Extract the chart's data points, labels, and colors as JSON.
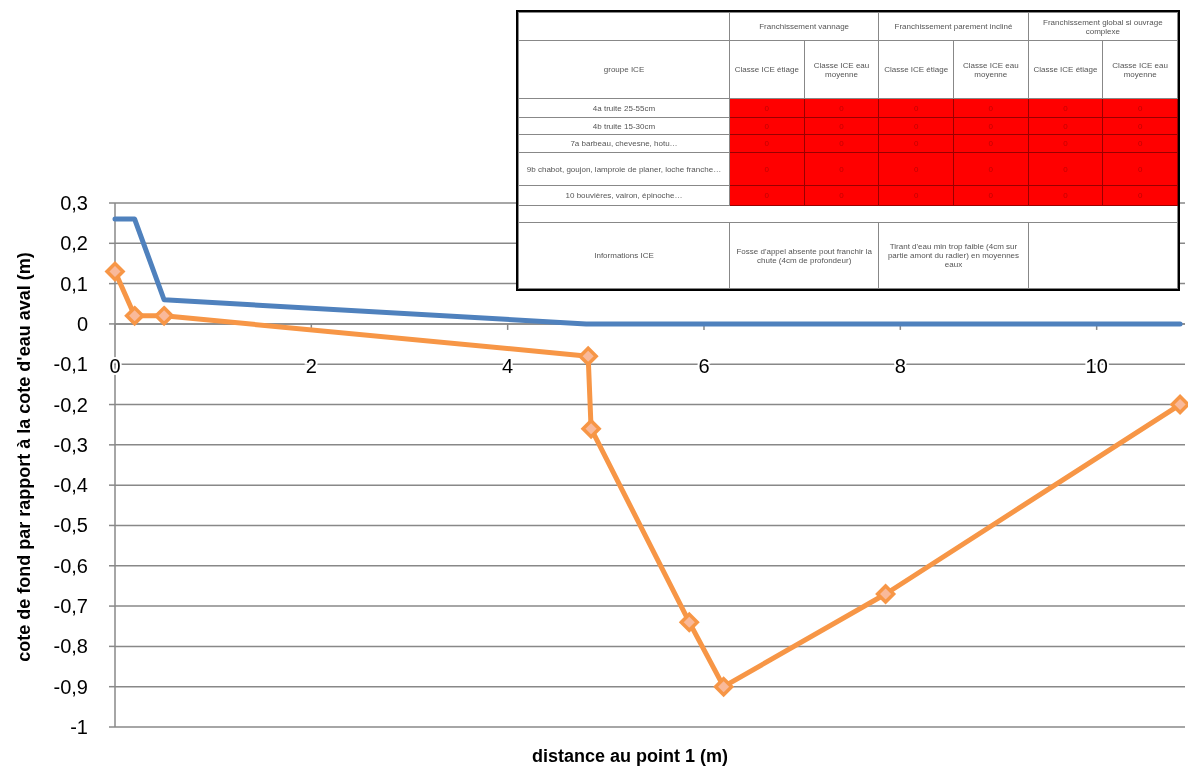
{
  "chart_data": {
    "type": "line",
    "xlabel": "distance au point 1 (m)",
    "ylabel": "cote de fond par rapport à la cote d'eau aval (m)",
    "xlim": [
      0,
      10.9
    ],
    "xticks": [
      0,
      2,
      4,
      6,
      8,
      10
    ],
    "ylim": [
      -1,
      0.3
    ],
    "yticks": [
      {
        "value": 0.3,
        "label": "0,3"
      },
      {
        "value": 0.2,
        "label": "0,2"
      },
      {
        "value": 0.1,
        "label": "0,1"
      },
      0,
      {
        "value": -0.1,
        "label": "-0,1"
      },
      {
        "value": -0.2,
        "label": "-0,2"
      },
      {
        "value": -0.3,
        "label": "-0,3"
      },
      {
        "value": -0.4,
        "label": "-0,4"
      },
      {
        "value": -0.5,
        "label": "-0,5"
      },
      {
        "value": -0.6,
        "label": "-0,6"
      },
      {
        "value": -0.7,
        "label": "-0,7"
      },
      {
        "value": -0.8,
        "label": "-0,8"
      },
      {
        "value": -0.9,
        "label": "-0,9"
      },
      -1
    ],
    "grid": "y",
    "series": [
      {
        "color": "#4f81bd",
        "marker": "none",
        "x": [
          0,
          0.2,
          0.5,
          4.8,
          10.85
        ],
        "values": [
          0.26,
          0.26,
          0.06,
          0,
          0
        ]
      },
      {
        "color": "#f79646",
        "marker": "diamond",
        "x": [
          0,
          0.2,
          0.5,
          4.82,
          4.85,
          5.85,
          6.2,
          7.85,
          10.85
        ],
        "values": [
          0.13,
          0.02,
          0.02,
          -0.08,
          -0.26,
          -0.74,
          -0.9,
          -0.67,
          -0.2
        ]
      }
    ],
    "annotations": [
      "Franchissement vannage",
      "Franchissement parement incliné",
      "Franchissement global si ouvrage complexe",
      "groupe ICE",
      "Classe ICE étiage",
      "Classe ICE eau moyenne",
      "Classe ICE étiage",
      "Classe ICE eau moyenne",
      "Classe ICE étiage",
      "Classe ICE eau moyenne",
      "4a  truite 25-55cm",
      "4b  truite 15-30cm",
      "7a  barbeau, chevesne, hotu…",
      "9b  chabot, goujon, lamproie de planer, loche franche…",
      "10  bouvières, vairon, épinoche…",
      "0",
      "0",
      "0",
      "0",
      "0",
      "0",
      "0",
      "0",
      "0",
      "0",
      "0",
      "0",
      "0",
      "0",
      "0",
      "0",
      "0",
      "0",
      "0",
      "0",
      "0",
      "0",
      "0",
      "0",
      "0",
      "0",
      "0",
      "0",
      "0",
      "0",
      "Informations ICE",
      "Fosse d'appel absente pout franchir la chute (4cm de profondeur)",
      "Tirant d'eau min trop faible (4cm sur partie amont du radier) en moyennes eaux"
    ]
  }
}
